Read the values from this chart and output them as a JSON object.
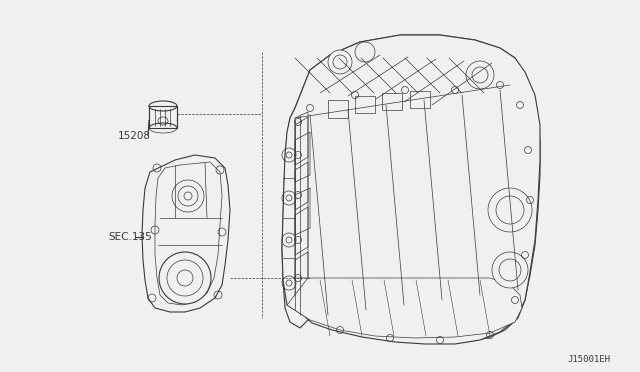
{
  "bg_color": "#f0f0f0",
  "line_color": "#3a3a3a",
  "text_color": "#3a3a3a",
  "label_15208": "15208",
  "label_sec135": "SEC.135",
  "label_code": "J15001EH",
  "fig_width": 6.4,
  "fig_height": 3.72,
  "dpi": 100
}
